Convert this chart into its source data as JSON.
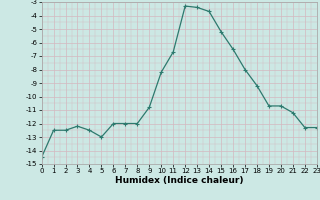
{
  "x": [
    0,
    1,
    2,
    3,
    4,
    5,
    6,
    7,
    8,
    9,
    10,
    11,
    12,
    13,
    14,
    15,
    16,
    17,
    18,
    19,
    20,
    21,
    22,
    23
  ],
  "y": [
    -14.5,
    -12.5,
    -12.5,
    -12.2,
    -12.5,
    -13.0,
    -12.0,
    -12.0,
    -12.0,
    -10.8,
    -8.2,
    -6.7,
    -3.3,
    -3.4,
    -3.7,
    -5.2,
    -6.5,
    -8.0,
    -9.2,
    -10.7,
    -10.7,
    -11.2,
    -12.3,
    -12.3
  ],
  "xlim": [
    0,
    23
  ],
  "ylim": [
    -15,
    -3
  ],
  "yticks": [
    -15,
    -14,
    -13,
    -12,
    -11,
    -10,
    -9,
    -8,
    -7,
    -6,
    -5,
    -4,
    -3
  ],
  "xticks": [
    0,
    1,
    2,
    3,
    4,
    5,
    6,
    7,
    8,
    9,
    10,
    11,
    12,
    13,
    14,
    15,
    16,
    17,
    18,
    19,
    20,
    21,
    22,
    23
  ],
  "xlabel": "Humidex (Indice chaleur)",
  "line_color": "#2d7a6e",
  "marker": "+",
  "markersize": 3.5,
  "linewidth": 0.9,
  "bg_color": "#cce8e4",
  "grid_color": "#d4b8c0",
  "tick_fontsize": 5.0,
  "xlabel_fontsize": 6.5
}
